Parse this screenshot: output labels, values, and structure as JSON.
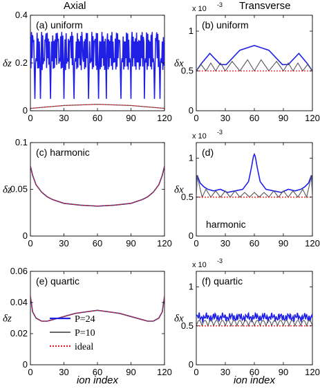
{
  "headers": {
    "left": "Axial",
    "right": "Transverse"
  },
  "xlabel": "ion index",
  "colors": {
    "p24": "#1f1fe6",
    "p10": "#555555",
    "ideal": "#e0141e"
  },
  "legend": [
    "P=24",
    "P=10",
    "ideal"
  ],
  "chart_data": [
    {
      "id": "a",
      "type": "line",
      "title": "(a) uniform",
      "ylabel": "δz",
      "xlim": [
        0,
        120
      ],
      "xticks": [
        0,
        30,
        60,
        90,
        120
      ],
      "ylim": [
        0,
        0.4
      ],
      "yticks": [
        0,
        0.2,
        0.4
      ],
      "ytick_labels": [
        "0",
        "0.2",
        "0.4"
      ],
      "series": [
        {
          "name": "P=24",
          "description": "rapidly oscillating between ~0.17 and ~0.33 with dips near 0.05",
          "values": [
            0.33,
            0.05,
            0.3,
            0.2,
            0.32,
            0.17,
            0.31,
            0.06,
            0.3,
            0.18,
            0.33
          ]
        },
        {
          "name": "P=10",
          "x": [
            0,
            30,
            60,
            90,
            120
          ],
          "values": [
            0.01,
            0.022,
            0.027,
            0.022,
            0.01
          ]
        },
        {
          "name": "ideal",
          "x": [
            0,
            30,
            60,
            90,
            120
          ],
          "values": [
            0.01,
            0.022,
            0.027,
            0.022,
            0.01
          ]
        }
      ]
    },
    {
      "id": "b",
      "type": "line",
      "title": "(b) uniform",
      "ylabel": "δx",
      "multiplier": "x 10",
      "multiplier_exp": "-3",
      "xlim": [
        0,
        120
      ],
      "xticks": [
        0,
        30,
        60,
        90,
        120
      ],
      "ylim": [
        0,
        1.2
      ],
      "yticks": [
        0,
        0.5,
        1
      ],
      "ytick_labels": [
        "0",
        "0.5",
        "1"
      ],
      "series": [
        {
          "name": "P=24",
          "x": [
            0,
            5,
            14,
            25,
            31,
            45,
            60,
            75,
            89,
            95,
            106,
            115,
            120
          ],
          "values": [
            0.5,
            0.59,
            0.72,
            0.58,
            0.58,
            0.76,
            0.82,
            0.76,
            0.58,
            0.58,
            0.72,
            0.59,
            0.5
          ]
        },
        {
          "name": "P=10",
          "x": [
            0,
            5,
            10,
            15,
            20,
            25,
            30,
            37,
            45,
            53,
            60,
            67,
            75,
            83,
            90,
            95,
            100,
            105,
            110,
            115,
            120
          ],
          "values": [
            0.5,
            0.58,
            0.5,
            0.6,
            0.5,
            0.6,
            0.5,
            0.62,
            0.5,
            0.64,
            0.5,
            0.64,
            0.5,
            0.62,
            0.5,
            0.6,
            0.5,
            0.6,
            0.5,
            0.58,
            0.5
          ]
        },
        {
          "name": "ideal",
          "x": [
            0,
            120
          ],
          "values": [
            0.5,
            0.5
          ]
        }
      ]
    },
    {
      "id": "c",
      "type": "line",
      "title": "(c) harmonic",
      "ylabel": "δz",
      "xlim": [
        0,
        120
      ],
      "xticks": [
        0,
        30,
        60,
        90,
        120
      ],
      "ylim": [
        0,
        0.1
      ],
      "yticks": [
        0,
        0.05,
        0.1
      ],
      "ytick_labels": [
        "0",
        "0.05",
        "0.1"
      ],
      "series": [
        {
          "name": "P=24",
          "x": [
            0,
            2,
            5,
            10,
            15,
            20,
            30,
            45,
            60,
            75,
            90,
            100,
            105,
            110,
            115,
            118,
            120
          ],
          "values": [
            0.075,
            0.065,
            0.055,
            0.047,
            0.042,
            0.039,
            0.035,
            0.033,
            0.032,
            0.033,
            0.035,
            0.039,
            0.042,
            0.047,
            0.055,
            0.065,
            0.075
          ]
        },
        {
          "name": "P=10",
          "x": [
            0,
            2,
            5,
            10,
            15,
            20,
            30,
            45,
            60,
            75,
            90,
            100,
            105,
            110,
            115,
            118,
            120
          ],
          "values": [
            0.075,
            0.065,
            0.055,
            0.047,
            0.042,
            0.039,
            0.035,
            0.033,
            0.032,
            0.033,
            0.035,
            0.039,
            0.042,
            0.047,
            0.055,
            0.065,
            0.075
          ]
        },
        {
          "name": "ideal",
          "x": [
            0,
            2,
            5,
            10,
            15,
            20,
            30,
            45,
            60,
            75,
            90,
            100,
            105,
            110,
            115,
            118,
            120
          ],
          "values": [
            0.075,
            0.065,
            0.055,
            0.047,
            0.042,
            0.039,
            0.035,
            0.033,
            0.032,
            0.033,
            0.035,
            0.039,
            0.042,
            0.047,
            0.055,
            0.065,
            0.075
          ]
        }
      ]
    },
    {
      "id": "d",
      "type": "line",
      "title": "(d)",
      "annotation": "harmonic",
      "ylabel": "δx",
      "multiplier": "x 10",
      "multiplier_exp": "-3",
      "xlim": [
        0,
        120
      ],
      "xticks": [
        0,
        30,
        60,
        90,
        120
      ],
      "ylim": [
        0,
        1.2
      ],
      "yticks": [
        0,
        0.5,
        1
      ],
      "ytick_labels": [
        "0",
        "0.5",
        "1"
      ],
      "series": [
        {
          "name": "P=24",
          "x": [
            0,
            1,
            4,
            8,
            12,
            18,
            25,
            32,
            40,
            48,
            54,
            57,
            59,
            60,
            61,
            63,
            66,
            72,
            80,
            88,
            95,
            102,
            108,
            112,
            116,
            119,
            120
          ],
          "values": [
            0.6,
            0.78,
            0.68,
            0.63,
            0.6,
            0.58,
            0.6,
            0.56,
            0.58,
            0.6,
            0.7,
            0.88,
            1.02,
            1.05,
            1.02,
            0.88,
            0.7,
            0.6,
            0.58,
            0.56,
            0.6,
            0.58,
            0.6,
            0.63,
            0.68,
            0.78,
            0.6
          ]
        },
        {
          "name": "P=10",
          "x": [
            0,
            1,
            3,
            6,
            10,
            15,
            20,
            25,
            30,
            35,
            40,
            45,
            50,
            55,
            60,
            65,
            70,
            75,
            80,
            85,
            90,
            95,
            100,
            105,
            110,
            114,
            117,
            119,
            120
          ],
          "values": [
            0.5,
            0.78,
            0.66,
            0.5,
            0.6,
            0.5,
            0.58,
            0.5,
            0.58,
            0.5,
            0.58,
            0.5,
            0.56,
            0.5,
            0.56,
            0.5,
            0.56,
            0.5,
            0.58,
            0.5,
            0.58,
            0.5,
            0.58,
            0.5,
            0.6,
            0.5,
            0.66,
            0.78,
            0.5
          ]
        },
        {
          "name": "ideal",
          "x": [
            0,
            120
          ],
          "values": [
            0.5,
            0.5
          ]
        }
      ]
    },
    {
      "id": "e",
      "type": "line",
      "title": "(e) quartic",
      "ylabel": "δz",
      "xlim": [
        0,
        120
      ],
      "xticks": [
        0,
        30,
        60,
        90,
        120
      ],
      "ylim": [
        0,
        0.06
      ],
      "yticks": [
        0,
        0.02,
        0.04,
        0.06
      ],
      "ytick_labels": [
        "0",
        "0.02",
        "0.04",
        "0.06"
      ],
      "series": [
        {
          "name": "P=24",
          "x": [
            0,
            2,
            5,
            10,
            15,
            20,
            30,
            40,
            50,
            60,
            70,
            80,
            90,
            100,
            105,
            110,
            115,
            118,
            120
          ],
          "values": [
            0.044,
            0.034,
            0.03,
            0.028,
            0.028,
            0.029,
            0.031,
            0.033,
            0.034,
            0.035,
            0.034,
            0.033,
            0.031,
            0.029,
            0.028,
            0.028,
            0.03,
            0.034,
            0.044
          ]
        },
        {
          "name": "P=10",
          "x": [
            0,
            2,
            5,
            10,
            15,
            20,
            30,
            40,
            50,
            60,
            70,
            80,
            90,
            100,
            105,
            110,
            115,
            118,
            120
          ],
          "values": [
            0.044,
            0.034,
            0.03,
            0.028,
            0.028,
            0.029,
            0.031,
            0.033,
            0.034,
            0.035,
            0.034,
            0.033,
            0.031,
            0.029,
            0.028,
            0.028,
            0.03,
            0.034,
            0.044
          ]
        },
        {
          "name": "ideal",
          "x": [
            0,
            2,
            5,
            10,
            15,
            20,
            30,
            40,
            50,
            60,
            70,
            80,
            90,
            100,
            105,
            110,
            115,
            118,
            120
          ],
          "values": [
            0.044,
            0.034,
            0.03,
            0.028,
            0.028,
            0.029,
            0.031,
            0.033,
            0.034,
            0.035,
            0.034,
            0.033,
            0.031,
            0.029,
            0.028,
            0.028,
            0.03,
            0.034,
            0.044
          ]
        }
      ]
    },
    {
      "id": "f",
      "type": "line",
      "title": "(f) quartic",
      "ylabel": "δx",
      "multiplier": "x 10",
      "multiplier_exp": "-3",
      "xlim": [
        0,
        120
      ],
      "xticks": [
        0,
        30,
        60,
        90,
        120
      ],
      "ylim": [
        0,
        1.2
      ],
      "yticks": [
        0,
        0.5,
        1
      ],
      "ytick_labels": [
        "0",
        "0.5",
        "1"
      ],
      "series": [
        {
          "name": "P=24",
          "description": "jagged band around 0.6–0.65",
          "values": [
            0.62,
            0.58,
            0.64,
            0.6,
            0.63,
            0.57,
            0.65,
            0.6,
            0.64,
            0.58,
            0.62
          ]
        },
        {
          "name": "P=10",
          "description": "scallops between 0.5 and ~0.57",
          "values": [
            0.5,
            0.57,
            0.5,
            0.57,
            0.5,
            0.57,
            0.5
          ]
        },
        {
          "name": "ideal",
          "x": [
            0,
            120
          ],
          "values": [
            0.5,
            0.5
          ]
        }
      ]
    }
  ]
}
